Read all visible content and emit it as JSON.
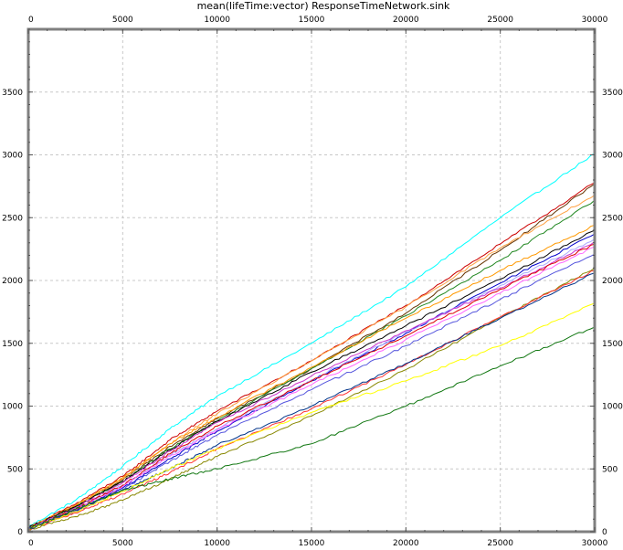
{
  "chart_data": {
    "type": "line",
    "title": "mean(lifeTime:vector) ResponseTimeNetwork.sink",
    "xlabel": "",
    "ylabel": "",
    "xlim": [
      0,
      30000
    ],
    "ylim": [
      0,
      4000
    ],
    "x_ticks": [
      0,
      5000,
      10000,
      15000,
      20000,
      25000,
      30000
    ],
    "y_ticks": [
      0,
      500,
      1000,
      1500,
      2000,
      2500,
      3000,
      3500
    ],
    "x_tick_labels": [
      "0",
      "5000",
      "10000",
      "15000",
      "20000",
      "25000",
      "30000"
    ],
    "y_tick_labels": [
      "0",
      "500",
      "1000",
      "1500",
      "2000",
      "2500",
      "3000",
      "3500"
    ],
    "grid": true,
    "legend": "none",
    "series": [
      {
        "color": "#00ffff",
        "x": [
          0,
          2500,
          5000,
          7500,
          10000,
          15000,
          20000,
          25000,
          30000
        ],
        "y": [
          40,
          250,
          520,
          820,
          1080,
          1500,
          1950,
          2500,
          3010
        ]
      },
      {
        "color": "#cc0000",
        "x": [
          0,
          2500,
          5000,
          7500,
          10000,
          15000,
          20000,
          25000,
          30000
        ],
        "y": [
          30,
          220,
          440,
          730,
          960,
          1360,
          1800,
          2290,
          2780
        ]
      },
      {
        "color": "#663300",
        "x": [
          0,
          2500,
          5000,
          7500,
          10000,
          15000,
          20000,
          25000,
          30000
        ],
        "y": [
          25,
          200,
          410,
          680,
          900,
          1300,
          1740,
          2240,
          2770
        ]
      },
      {
        "color": "#ffa040",
        "x": [
          0,
          2500,
          5000,
          7500,
          10000,
          15000,
          20000,
          25000,
          30000
        ],
        "y": [
          30,
          210,
          420,
          700,
          940,
          1360,
          1790,
          2260,
          2680
        ]
      },
      {
        "color": "#228822",
        "x": [
          0,
          2500,
          5000,
          7500,
          10000,
          15000,
          20000,
          25000,
          30000
        ],
        "y": [
          25,
          200,
          400,
          660,
          880,
          1300,
          1720,
          2160,
          2640
        ]
      },
      {
        "color": "#ff9900",
        "x": [
          0,
          2500,
          5000,
          7500,
          10000,
          15000,
          20000,
          25000,
          30000
        ],
        "y": [
          30,
          210,
          430,
          700,
          910,
          1310,
          1700,
          2080,
          2440
        ]
      },
      {
        "color": "#000000",
        "x": [
          0,
          2500,
          5000,
          7500,
          10000,
          15000,
          20000,
          25000,
          30000
        ],
        "y": [
          30,
          200,
          400,
          650,
          880,
          1270,
          1640,
          2010,
          2400
        ]
      },
      {
        "color": "#0000cc",
        "x": [
          0,
          2500,
          5000,
          7500,
          10000,
          15000,
          20000,
          25000,
          30000
        ],
        "y": [
          20,
          170,
          350,
          580,
          800,
          1200,
          1580,
          1980,
          2370
        ]
      },
      {
        "color": "#aaaaff",
        "x": [
          0,
          2500,
          5000,
          7500,
          10000,
          15000,
          20000,
          25000,
          30000
        ],
        "y": [
          25,
          180,
          370,
          610,
          820,
          1210,
          1590,
          1960,
          2330
        ]
      },
      {
        "color": "#cc33cc",
        "x": [
          0,
          2500,
          5000,
          7500,
          10000,
          15000,
          20000,
          25000,
          30000
        ],
        "y": [
          25,
          190,
          390,
          640,
          870,
          1240,
          1600,
          1940,
          2310
        ]
      },
      {
        "color": "#dd0000",
        "x": [
          0,
          2500,
          5000,
          7500,
          10000,
          15000,
          20000,
          25000,
          30000
        ],
        "y": [
          20,
          180,
          370,
          620,
          840,
          1200,
          1560,
          1930,
          2290
        ]
      },
      {
        "color": "#ff66ff",
        "x": [
          0,
          2500,
          5000,
          7500,
          10000,
          15000,
          20000,
          25000,
          30000
        ],
        "y": [
          20,
          170,
          360,
          600,
          810,
          1170,
          1530,
          1900,
          2270
        ]
      },
      {
        "color": "#5555dd",
        "x": [
          0,
          2500,
          5000,
          7500,
          10000,
          15000,
          20000,
          25000,
          30000
        ],
        "y": [
          20,
          160,
          340,
          560,
          770,
          1130,
          1480,
          1850,
          2210
        ]
      },
      {
        "color": "#888800",
        "x": [
          0,
          2500,
          5000,
          7500,
          10000,
          15000,
          20000,
          25000,
          30000
        ],
        "y": [
          15,
          120,
          250,
          420,
          600,
          920,
          1290,
          1700,
          2100
        ]
      },
      {
        "color": "#ff3333",
        "x": [
          0,
          2500,
          5000,
          7500,
          10000,
          15000,
          20000,
          25000,
          30000
        ],
        "y": [
          15,
          150,
          300,
          470,
          660,
          980,
          1330,
          1710,
          2080
        ]
      },
      {
        "color": "#003388",
        "x": [
          0,
          2500,
          5000,
          7500,
          10000,
          15000,
          20000,
          25000,
          30000
        ],
        "y": [
          20,
          170,
          330,
          500,
          690,
          1000,
          1340,
          1700,
          2060
        ]
      },
      {
        "color": "#ffff00",
        "x": [
          0,
          2500,
          5000,
          7500,
          10000,
          15000,
          20000,
          25000,
          30000
        ],
        "y": [
          20,
          160,
          320,
          500,
          660,
          950,
          1200,
          1480,
          1820
        ]
      },
      {
        "color": "#117711",
        "x": [
          0,
          2500,
          5000,
          7500,
          10000,
          15000,
          20000,
          25000,
          30000
        ],
        "y": [
          20,
          180,
          330,
          420,
          500,
          700,
          1000,
          1320,
          1630
        ]
      }
    ]
  }
}
